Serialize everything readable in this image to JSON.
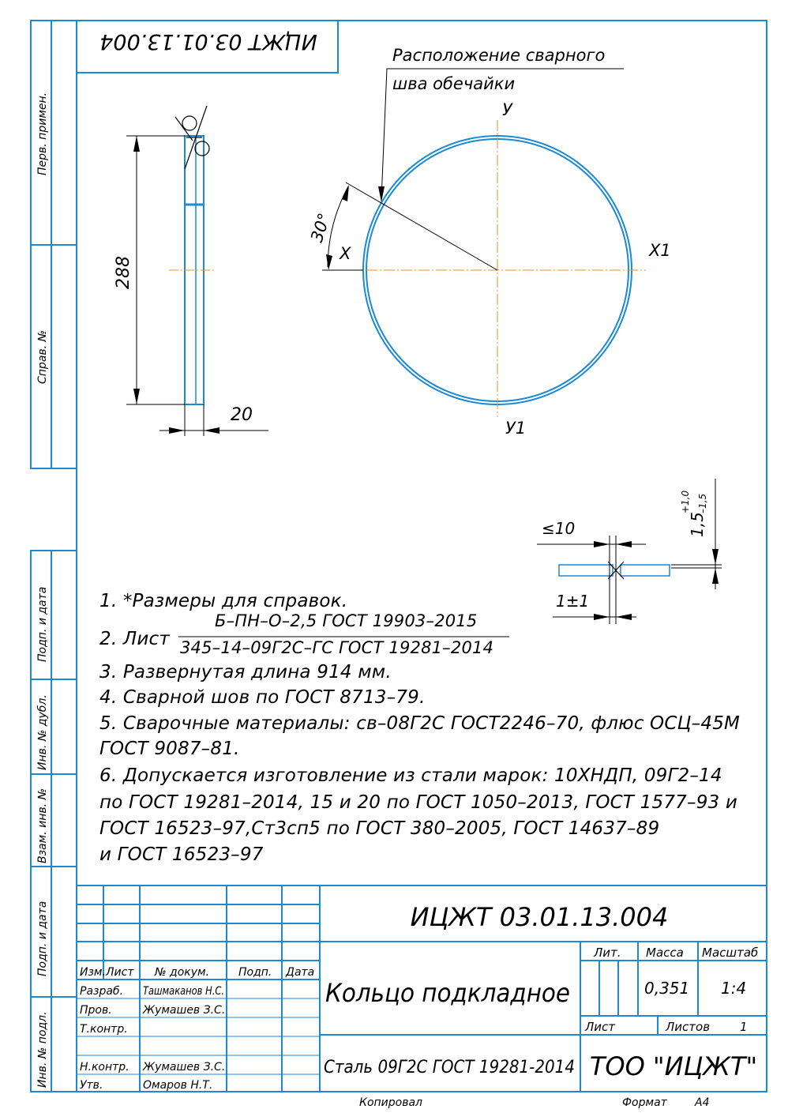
{
  "colors": {
    "frame": "#1a8ad4",
    "line": "#000000",
    "axis": "#e8902a"
  },
  "stamp_top": "ИЦЖТ 03.01.13.004",
  "side_labels": {
    "perv_primen": "Перв. примен.",
    "sprav": "Справ. №",
    "podp_data_1": "Подп. и дата",
    "inv_dubl": "Инв. № дубл.",
    "vzam_inv": "Взам. инв. №",
    "podp_data_2": "Подп. и дата",
    "inv_podl": "Инв. № подл."
  },
  "drawing": {
    "weld_label_1": "Расположение сварного",
    "weld_label_2": "шва обечайки",
    "axis_y": "У",
    "axis_y1": "У1",
    "axis_x": "Х",
    "axis_x1": "Х1",
    "angle": "30°",
    "dim_height": "288",
    "dim_width": "20",
    "dim_gap_max": "≤10",
    "dim_gap": "1±1",
    "dim_offset_base": "1,5",
    "dim_offset_up": "+1,0",
    "dim_offset_down": "–1,5"
  },
  "notes": {
    "n1": "1. *Размеры для справок.",
    "n2_prefix": "2. Лист",
    "n2_numerator": "Б–ПН–О–2,5 ГОСТ 19903–2015",
    "n2_denominator": "345–14–09Г2С–ГС ГОСТ 19281–2014",
    "n3": "3. Развернутая длина 914 мм.",
    "n4": "4. Сварной шов по ГОСТ 8713–79.",
    "n5a": "5. Сварочные материалы: св–08Г2С ГОСТ2246–70, флюс ОСЦ–45М",
    "n5b": "ГОСТ 9087–81.",
    "n6a": "6. Допускается изготовление из стали марок: 10ХНДП, 09Г2–14",
    "n6b": "по ГОСТ 19281–2014, 15 и 20 по ГОСТ 1050–2013, ГОСТ 1577–93 и",
    "n6c": "ГОСТ 16523–97,Ст3сп5 по ГОСТ 380–2005, ГОСТ 14637–89",
    "n6d": "и ГОСТ 16523–97"
  },
  "title_block": {
    "designation": "ИЦЖТ 03.01.13.004",
    "name": "Кольцо подкладное",
    "material": "Сталь 09Г2С ГОСТ 19281-2014",
    "company": "ТОО \"ИЦЖТ\"",
    "hdr_izm": "Изм.",
    "hdr_list": "Лист",
    "hdr_dokum": "№ докум.",
    "hdr_podp": "Подп.",
    "hdr_data": "Дата",
    "role_razrab": "Разраб.",
    "role_prov": "Пров.",
    "role_tkontr": "Т.контр.",
    "role_nkontr": "Н.контр.",
    "role_utv": "Утв.",
    "name_razrab": "Ташмаканов Н.С.",
    "name_prov": "Жумашев З.С.",
    "name_nkontr": "Жумашев З.С.",
    "name_utv": "Омаров Н.Т.",
    "lit_label": "Лит.",
    "massa_label": "Масса",
    "masshtab_label": "Масштаб",
    "massa_value": "0,351",
    "masshtab_value": "1:4",
    "list_label": "Лист",
    "listov_label": "Листов",
    "listov_value": "1"
  },
  "footer": {
    "kopiroval": "Копировал",
    "format_label": "Формат",
    "format_value": "А4"
  }
}
